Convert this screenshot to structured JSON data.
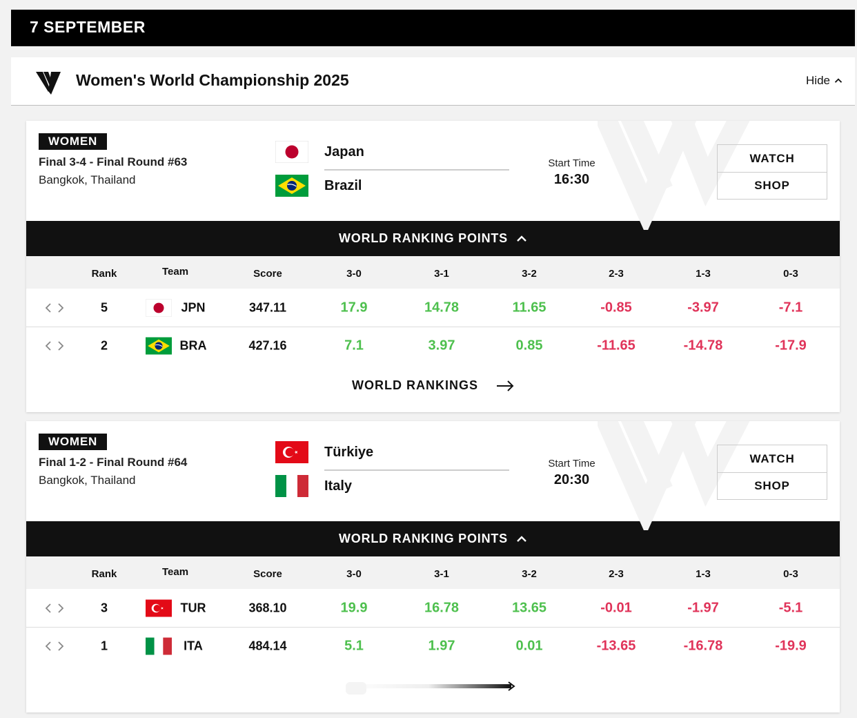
{
  "date_header": "7 SEPTEMBER",
  "competition": {
    "title": "Women's World Championship 2025",
    "hide_label": "Hide",
    "logo_icon": "volleyball-world-logo-icon"
  },
  "columns": {
    "rank": "Rank",
    "team": "Team",
    "score": "Score",
    "r30": "3-0",
    "r31": "3-1",
    "r32": "3-2",
    "r23": "2-3",
    "r13": "1-3",
    "r03": "0-3"
  },
  "colors": {
    "positive": "#4ec04e",
    "negative": "#e0345a"
  },
  "matches": [
    {
      "badge": "WOMEN",
      "round": "Final 3-4 - Final Round #63",
      "venue": "Bangkok, Thailand",
      "home": {
        "name": "Japan",
        "flag_icon": "japan-flag-icon"
      },
      "away": {
        "name": "Brazil",
        "flag_icon": "brazil-flag-icon"
      },
      "start_label": "Start Time",
      "start_time": "16:30",
      "watch_label": "WATCH",
      "shop_label": "SHOP",
      "wrp_label": "WORLD RANKING POINTS",
      "rows": [
        {
          "rank": "5",
          "code": "JPN",
          "score": "347.11",
          "r30": "17.9",
          "r31": "14.78",
          "r32": "11.65",
          "r23": "-0.85",
          "r13": "-3.97",
          "r03": "-7.1"
        },
        {
          "rank": "2",
          "code": "BRA",
          "score": "427.16",
          "r30": "7.1",
          "r31": "3.97",
          "r32": "0.85",
          "r23": "-11.65",
          "r13": "-14.78",
          "r03": "-17.9"
        }
      ],
      "rankings_link": "WORLD RANKINGS"
    },
    {
      "badge": "WOMEN",
      "round": "Final 1-2 - Final Round #64",
      "venue": "Bangkok, Thailand",
      "home": {
        "name": "Türkiye",
        "flag_icon": "turkey-flag-icon"
      },
      "away": {
        "name": "Italy",
        "flag_icon": "italy-flag-icon"
      },
      "start_label": "Start Time",
      "start_time": "20:30",
      "watch_label": "WATCH",
      "shop_label": "SHOP",
      "wrp_label": "WORLD RANKING POINTS",
      "rows": [
        {
          "rank": "3",
          "code": "TUR",
          "score": "368.10",
          "r30": "19.9",
          "r31": "16.78",
          "r32": "13.65",
          "r23": "-0.01",
          "r13": "-1.97",
          "r03": "-5.1"
        },
        {
          "rank": "1",
          "code": "ITA",
          "score": "484.14",
          "r30": "5.1",
          "r31": "1.97",
          "r32": "0.01",
          "r23": "-13.65",
          "r13": "-16.78",
          "r03": "-19.9"
        }
      ]
    }
  ]
}
